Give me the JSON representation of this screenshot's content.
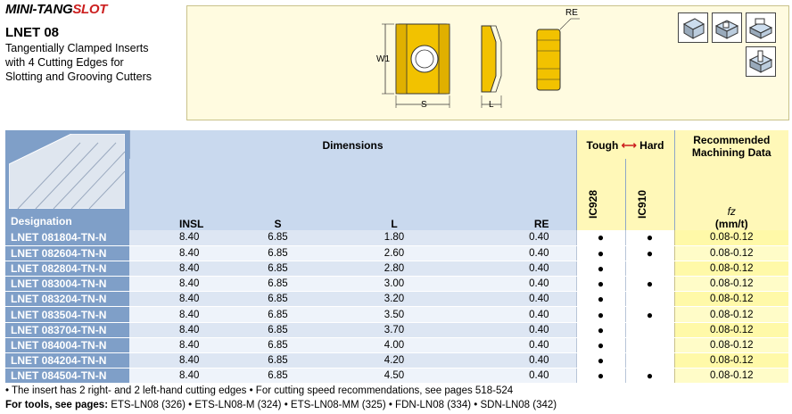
{
  "brand": {
    "part1": "MINI-TANG",
    "part2": "SLOT"
  },
  "product": {
    "title": "LNET 08",
    "desc_lines": [
      "Tangentially Clamped Inserts",
      "with 4 Cutting Edges for",
      "Slotting and Grooving Cutters"
    ]
  },
  "drawing": {
    "w1": "W1",
    "s": "S",
    "l": "L",
    "re": "RE"
  },
  "colors": {
    "header_blue": "#7f9fc8",
    "header_light": "#c9d9ee",
    "yellow": "#fff8b8",
    "insert_gold": "#f2c200"
  },
  "table": {
    "designation_label": "Designation",
    "dimensions_label": "Dimensions",
    "tough_label": "Tough",
    "hard_label": "Hard",
    "recommended_label": "Recommended",
    "machining_label": "Machining Data",
    "columns": [
      "INSL",
      "S",
      "L",
      "RE"
    ],
    "grades": [
      "IC928",
      "IC910"
    ],
    "fz_label": "fz",
    "fz_unit": "(mm/t)",
    "rows": [
      {
        "code": "LNET 081804-TN-N",
        "insl": "8.40",
        "s": "6.85",
        "l": "1.80",
        "re": "0.40",
        "ic928": "●",
        "ic910": "●",
        "fz": "0.08-0.12"
      },
      {
        "code": "LNET 082604-TN-N",
        "insl": "8.40",
        "s": "6.85",
        "l": "2.60",
        "re": "0.40",
        "ic928": "●",
        "ic910": "●",
        "fz": "0.08-0.12"
      },
      {
        "code": "LNET 082804-TN-N",
        "insl": "8.40",
        "s": "6.85",
        "l": "2.80",
        "re": "0.40",
        "ic928": "●",
        "ic910": "",
        "fz": "0.08-0.12"
      },
      {
        "code": "LNET 083004-TN-N",
        "insl": "8.40",
        "s": "6.85",
        "l": "3.00",
        "re": "0.40",
        "ic928": "●",
        "ic910": "●",
        "fz": "0.08-0.12"
      },
      {
        "code": "LNET 083204-TN-N",
        "insl": "8.40",
        "s": "6.85",
        "l": "3.20",
        "re": "0.40",
        "ic928": "●",
        "ic910": "",
        "fz": "0.08-0.12"
      },
      {
        "code": "LNET 083504-TN-N",
        "insl": "8.40",
        "s": "6.85",
        "l": "3.50",
        "re": "0.40",
        "ic928": "●",
        "ic910": "●",
        "fz": "0.08-0.12"
      },
      {
        "code": "LNET 083704-TN-N",
        "insl": "8.40",
        "s": "6.85",
        "l": "3.70",
        "re": "0.40",
        "ic928": "●",
        "ic910": "",
        "fz": "0.08-0.12"
      },
      {
        "code": "LNET 084004-TN-N",
        "insl": "8.40",
        "s": "6.85",
        "l": "4.00",
        "re": "0.40",
        "ic928": "●",
        "ic910": "",
        "fz": "0.08-0.12"
      },
      {
        "code": "LNET 084204-TN-N",
        "insl": "8.40",
        "s": "6.85",
        "l": "4.20",
        "re": "0.40",
        "ic928": "●",
        "ic910": "",
        "fz": "0.08-0.12"
      },
      {
        "code": "LNET 084504-TN-N",
        "insl": "8.40",
        "s": "6.85",
        "l": "4.50",
        "re": "0.40",
        "ic928": "●",
        "ic910": "●",
        "fz": "0.08-0.12"
      }
    ]
  },
  "notes": {
    "line1": "• The insert has 2 right- and 2 left-hand cutting edges   • For cutting speed recommendations, see pages 518-524",
    "tools_label": "For tools, see pages:",
    "tools_text": " ETS-LN08 (326)  • ETS-LN08-M (324)  • ETS-LN08-MM (325)  • FDN-LN08 (334)  • SDN-LN08 (342)"
  }
}
